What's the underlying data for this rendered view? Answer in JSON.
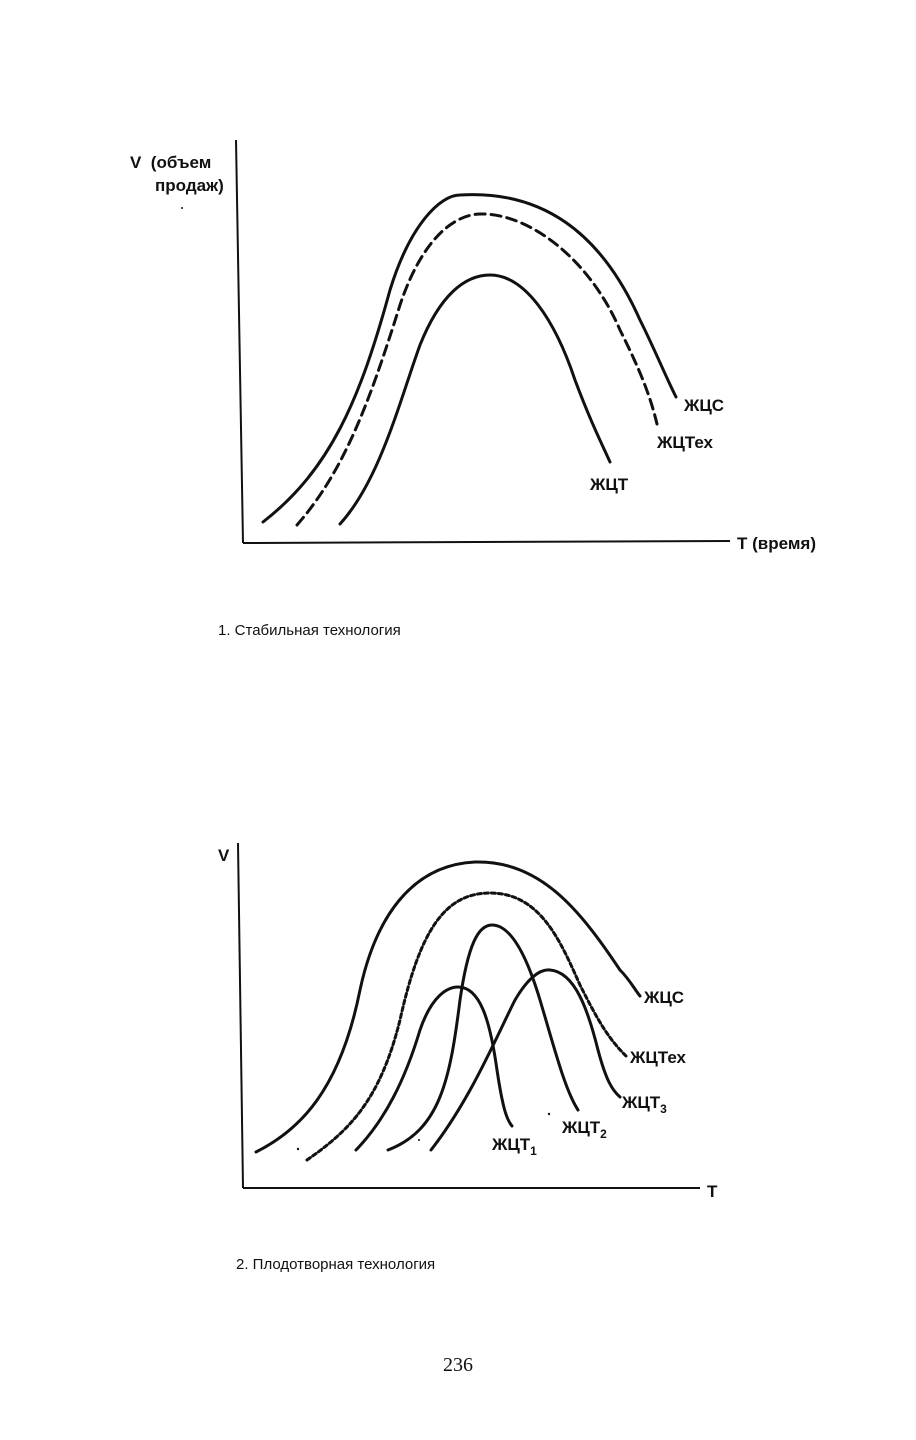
{
  "figure1": {
    "y_axis_label_line1": "V  (объем",
    "y_axis_label_line2": "продаж)",
    "x_axis_label": "T (время)",
    "curves": [
      {
        "name": "ЖЦС",
        "style": "solid"
      },
      {
        "name": "ЖЦТех",
        "style": "dashed"
      },
      {
        "name": "ЖЦТ",
        "style": "solid"
      }
    ],
    "caption": "1. Стабильная технология"
  },
  "figure2": {
    "y_axis_label": "V",
    "x_axis_label": "T",
    "curves": [
      {
        "name": "ЖЦС",
        "style": "solid"
      },
      {
        "name": "ЖЦТех",
        "style": "dotted"
      },
      {
        "name": "ЖЦТ",
        "sub": "1",
        "style": "solid"
      },
      {
        "name": "ЖЦТ",
        "sub": "2",
        "style": "solid"
      },
      {
        "name": "ЖЦТ",
        "sub": "3",
        "style": "solid"
      }
    ],
    "caption": "2. Плодотворная технология"
  },
  "page_number": "236"
}
